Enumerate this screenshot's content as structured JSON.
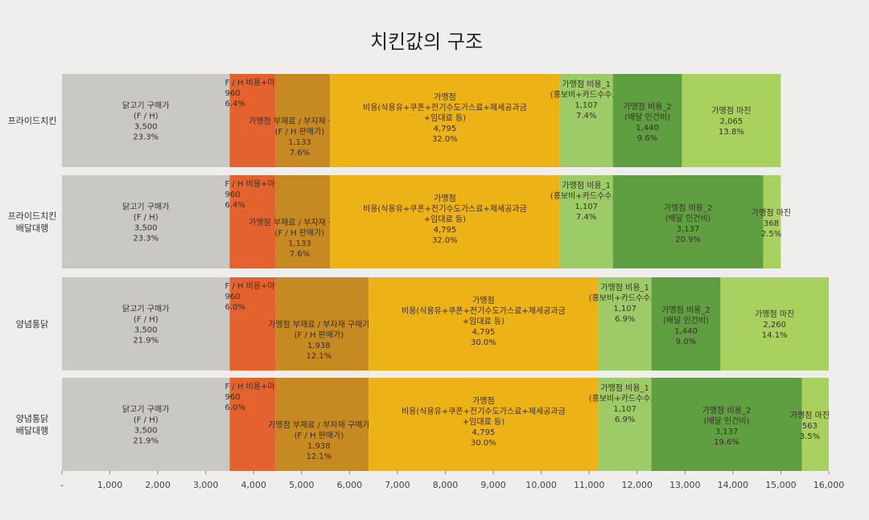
{
  "chart_data": {
    "type": "bar",
    "orientation": "horizontal",
    "stacked": true,
    "title": "치킨값의 구조",
    "xlim": [
      0,
      16000
    ],
    "x_ticks": [
      "-",
      "1,000",
      "2,000",
      "3,000",
      "4,000",
      "5,000",
      "6,000",
      "7,000",
      "8,000",
      "9,000",
      "10,000",
      "11,000",
      "12,000",
      "13,000",
      "14,000",
      "15,000",
      "16,000"
    ],
    "grid": false,
    "legend": "none",
    "colors": {
      "닭고기": "#c9c8c5",
      "FH마진": "#e4622e",
      "부재료": "#c78a22",
      "비용": "#ecb216",
      "비용1": "#9dcb67",
      "비용2": "#5f9f42",
      "마진": "#a9d160"
    },
    "bars": [
      {
        "category_lines": [
          "프라이드치킨"
        ],
        "segments": [
          {
            "key": "닭고기",
            "value": 3500,
            "lines": [
              "닭고기 구매가",
              "(F / H)",
              "3,500",
              "23.3%"
            ]
          },
          {
            "key": "FH마진",
            "value": 960,
            "lines": [
              "F / H 비용+마진",
              "960",
              "6.4%"
            ]
          },
          {
            "key": "부재료",
            "value": 1133,
            "lines": [
              "가맹점 부재료 / 부자재 구매가",
              "(F / H 판매가)",
              "1,133",
              "7.6%"
            ]
          },
          {
            "key": "비용",
            "value": 4795,
            "lines": [
              "가맹점",
              "비용(식용유+쿠폰+전기수도가스료+제세공과금",
              "+임대료 등)",
              "4,795",
              "32.0%"
            ]
          },
          {
            "key": "비용1",
            "value": 1107,
            "lines": [
              "가맹점 비용_1",
              "(홍보비+카드수수료)",
              "1,107",
              "7.4%"
            ]
          },
          {
            "key": "비용2",
            "value": 1440,
            "lines": [
              "가맹점 비용_2",
              "(배달 인건비)",
              "1,440",
              "9.6%"
            ]
          },
          {
            "key": "마진",
            "value": 2065,
            "lines": [
              "가맹점 마진",
              "2,065",
              "13.8%"
            ]
          }
        ]
      },
      {
        "category_lines": [
          "프라이드치킨",
          "배달대행"
        ],
        "segments": [
          {
            "key": "닭고기",
            "value": 3500,
            "lines": [
              "닭고기 구매가",
              "(F / H)",
              "3,500",
              "23.3%"
            ]
          },
          {
            "key": "FH마진",
            "value": 960,
            "lines": [
              "F / H 비용+마진",
              "960",
              "6.4%"
            ]
          },
          {
            "key": "부재료",
            "value": 1133,
            "lines": [
              "가맹점 부재료 / 부자재 구매가",
              "(F / H 판매가)",
              "1,133",
              "7.6%"
            ]
          },
          {
            "key": "비용",
            "value": 4795,
            "lines": [
              "가맹점",
              "비용(식용유+쿠폰+전기수도가스료+제세공과금",
              "+임대료 등)",
              "4,795",
              "32.0%"
            ]
          },
          {
            "key": "비용1",
            "value": 1107,
            "lines": [
              "가맹점 비용_1",
              "(홍보비+카드수수료)",
              "1,107",
              "7.4%"
            ]
          },
          {
            "key": "비용2",
            "value": 3137,
            "lines": [
              "가맹점 비용_2",
              "(배달 인건비)",
              "3,137",
              "20.9%"
            ]
          },
          {
            "key": "마진",
            "value": 368,
            "lines": [
              "가맹점 마진",
              "368",
              "2.5%"
            ]
          }
        ]
      },
      {
        "category_lines": [
          "양념통닭"
        ],
        "segments": [
          {
            "key": "닭고기",
            "value": 3500,
            "lines": [
              "닭고기 구매가",
              "(F / H)",
              "3,500",
              "21.9%"
            ]
          },
          {
            "key": "FH마진",
            "value": 960,
            "lines": [
              "F / H 비용+마진",
              "960",
              "6.0%"
            ]
          },
          {
            "key": "부재료",
            "value": 1938,
            "lines": [
              "가맹점 부재료 / 부자재 구매가",
              "(F / H 판매가)",
              "1,938",
              "12.1%"
            ]
          },
          {
            "key": "비용",
            "value": 4795,
            "lines": [
              "가맹점",
              "비용(식용유+쿠폰+전기수도가스료+제세공과금",
              "+임대료 등)",
              "4,795",
              "30.0%"
            ]
          },
          {
            "key": "비용1",
            "value": 1107,
            "lines": [
              "가맹점 비용_1",
              "(홍보비+카드수수료)",
              "1,107",
              "6.9%"
            ]
          },
          {
            "key": "비용2",
            "value": 1440,
            "lines": [
              "가맹점 비용_2",
              "(배달 인건비)",
              "1,440",
              "9.0%"
            ]
          },
          {
            "key": "마진",
            "value": 2260,
            "lines": [
              "가맹점 마진",
              "2,260",
              "14.1%"
            ]
          }
        ]
      },
      {
        "category_lines": [
          "양념통닭",
          "배달대행"
        ],
        "segments": [
          {
            "key": "닭고기",
            "value": 3500,
            "lines": [
              "닭고기 구매가",
              "(F / H)",
              "3,500",
              "21.9%"
            ]
          },
          {
            "key": "FH마진",
            "value": 960,
            "lines": [
              "F / H 비용+마진",
              "960",
              "6.0%"
            ]
          },
          {
            "key": "부재료",
            "value": 1938,
            "lines": [
              "가맹점 부재료 / 부자재 구매가",
              "(F / H 판매가)",
              "1,938",
              "12.1%"
            ]
          },
          {
            "key": "비용",
            "value": 4795,
            "lines": [
              "가맹점",
              "비용(식용유+쿠폰+전기수도가스료+제세공과금",
              "+임대료 등)",
              "4,795",
              "30.0%"
            ]
          },
          {
            "key": "비용1",
            "value": 1107,
            "lines": [
              "가맹점 비용_1",
              "(홍보비+카드수수료)",
              "1,107",
              "6.9%"
            ]
          },
          {
            "key": "비용2",
            "value": 3137,
            "lines": [
              "가맹점 비용_2",
              "(배달 인건비)",
              "3,137",
              "19.6%"
            ]
          },
          {
            "key": "마진",
            "value": 563,
            "lines": [
              "가맹점 마진",
              "563",
              "3.5%"
            ]
          }
        ]
      }
    ]
  }
}
